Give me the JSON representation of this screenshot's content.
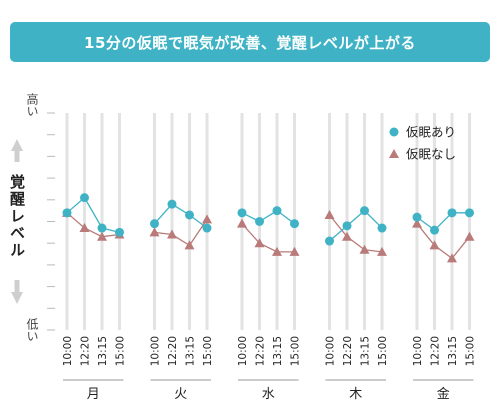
{
  "title": "15分の仮眠で眠気が改善、覚醒レベルが上がる",
  "y_axis": {
    "label": "覚醒レベル",
    "top_label": "高い",
    "bottom_label": "低い"
  },
  "colors": {
    "banner": "#3fb3c5",
    "nap": "#3fb3c5",
    "no_nap": "#b97a7a",
    "grid": "#e3e3e3",
    "arrow": "#cfcfcf"
  },
  "chart_data": {
    "type": "line",
    "title": "15分の仮眠で眠気が改善、覚醒レベルが上がる",
    "ylabel": "覚醒レベル",
    "ylim": [
      0,
      10
    ],
    "grid": true,
    "legend_position": "top-right",
    "times": [
      "10:00",
      "12:20",
      "13:15",
      "15:00"
    ],
    "days": [
      "月",
      "火",
      "水",
      "木",
      "金"
    ],
    "series": [
      {
        "name": "仮眠あり",
        "marker": "circle",
        "values": [
          [
            5.4,
            6.1,
            4.7,
            4.5
          ],
          [
            4.9,
            5.8,
            5.3,
            4.7
          ],
          [
            5.4,
            5.0,
            5.5,
            4.9
          ],
          [
            4.1,
            4.8,
            5.5,
            4.7
          ],
          [
            5.2,
            4.6,
            5.4,
            5.4
          ]
        ]
      },
      {
        "name": "仮眠なし",
        "marker": "triangle",
        "values": [
          [
            5.4,
            4.7,
            4.3,
            4.4
          ],
          [
            4.5,
            4.4,
            3.9,
            5.1
          ],
          [
            4.9,
            4.0,
            3.6,
            3.6
          ],
          [
            5.3,
            4.3,
            3.7,
            3.6
          ],
          [
            4.9,
            3.9,
            3.3,
            4.3
          ]
        ]
      }
    ]
  }
}
